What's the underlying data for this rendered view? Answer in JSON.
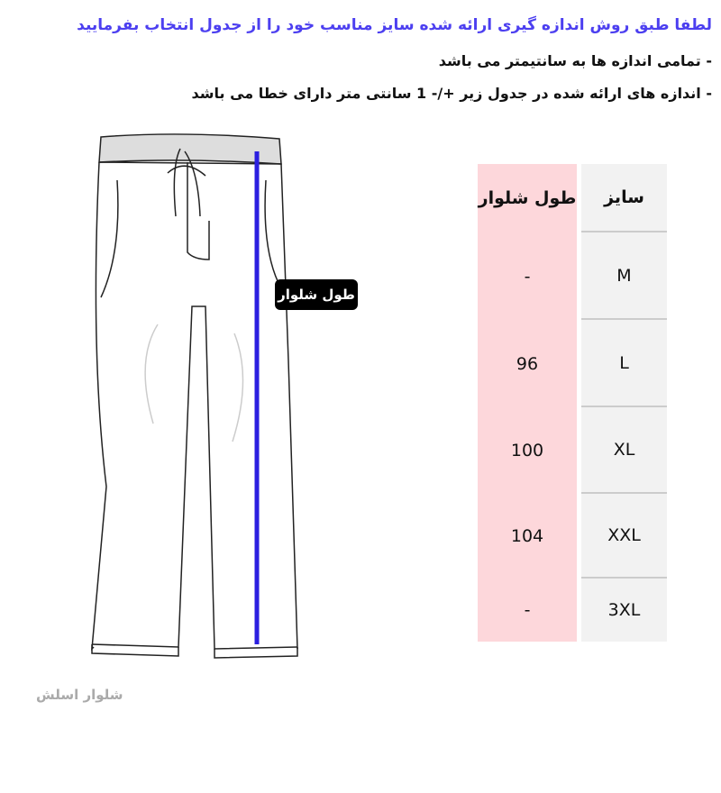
{
  "header": {
    "title": "لطفا طبق روش اندازه گیری ارائه شده سایز مناسب خود را از جدول انتخاب بفرمایید",
    "notes": [
      "- تمامی اندازه ها به سانتیمتر می باشد",
      "- اندازه های ارائه شده در جدول زیر +/- 1 سانتی متر دارای خطا می باشد"
    ]
  },
  "figure": {
    "label": "طول شلوار"
  },
  "table": {
    "columns": [
      "طول شلوار",
      "سایز"
    ],
    "rows": [
      [
        "-",
        "M"
      ],
      [
        96,
        "L"
      ],
      [
        100,
        "XL"
      ],
      [
        104,
        "XXL"
      ],
      [
        "-",
        "3XL"
      ]
    ]
  },
  "footer": {
    "caption": "شلوار اسلش"
  }
}
